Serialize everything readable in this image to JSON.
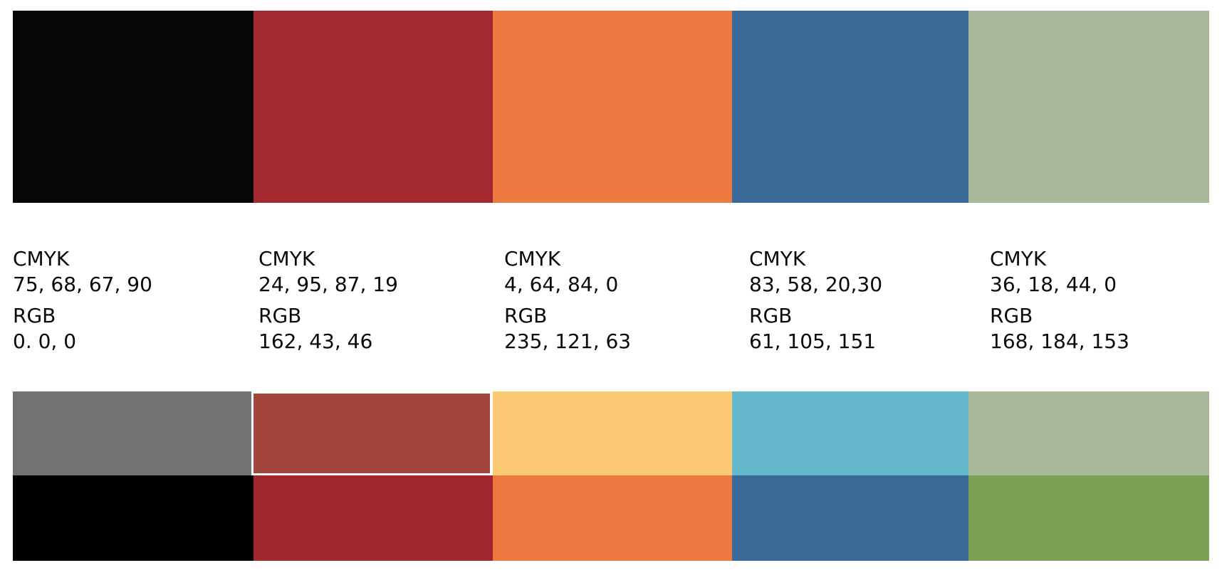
{
  "palette": [
    {
      "cmyk_label": "CMYK",
      "cmyk": "75, 68, 67, 90",
      "rgb_label": "RGB",
      "rgb": "0. 0, 0",
      "main_color": "#060606",
      "tint_color": "#717274",
      "shade_color": "#000000"
    },
    {
      "cmyk_label": "CMYK",
      "cmyk": "24, 95, 87, 19",
      "rgb_label": "RGB",
      "rgb": "162, 43, 46",
      "main_color": "#a2292f",
      "tint_color": "#a2453a",
      "shade_color": "#a1272e"
    },
    {
      "cmyk_label": "CMYK",
      "cmyk": "4, 64, 84, 0",
      "rgb_label": "RGB",
      "rgb": "235, 121, 63",
      "main_color": "#ec793f",
      "tint_color": "#fcc974",
      "shade_color": "#ec793f"
    },
    {
      "cmyk_label": "CMYK",
      "cmyk": "83, 58, 20,30",
      "rgb_label": "RGB",
      "rgb": "61, 105, 151",
      "main_color": "#3b6a98",
      "tint_color": "#65b8cc",
      "shade_color": "#3b6a98"
    },
    {
      "cmyk_label": "CMYK",
      "cmyk": "36, 18, 44, 0",
      "rgb_label": "RGB",
      "rgb": "168, 184, 153",
      "main_color": "#a8b899",
      "tint_color": "#a8b899",
      "shade_color": "#7ca152"
    }
  ]
}
